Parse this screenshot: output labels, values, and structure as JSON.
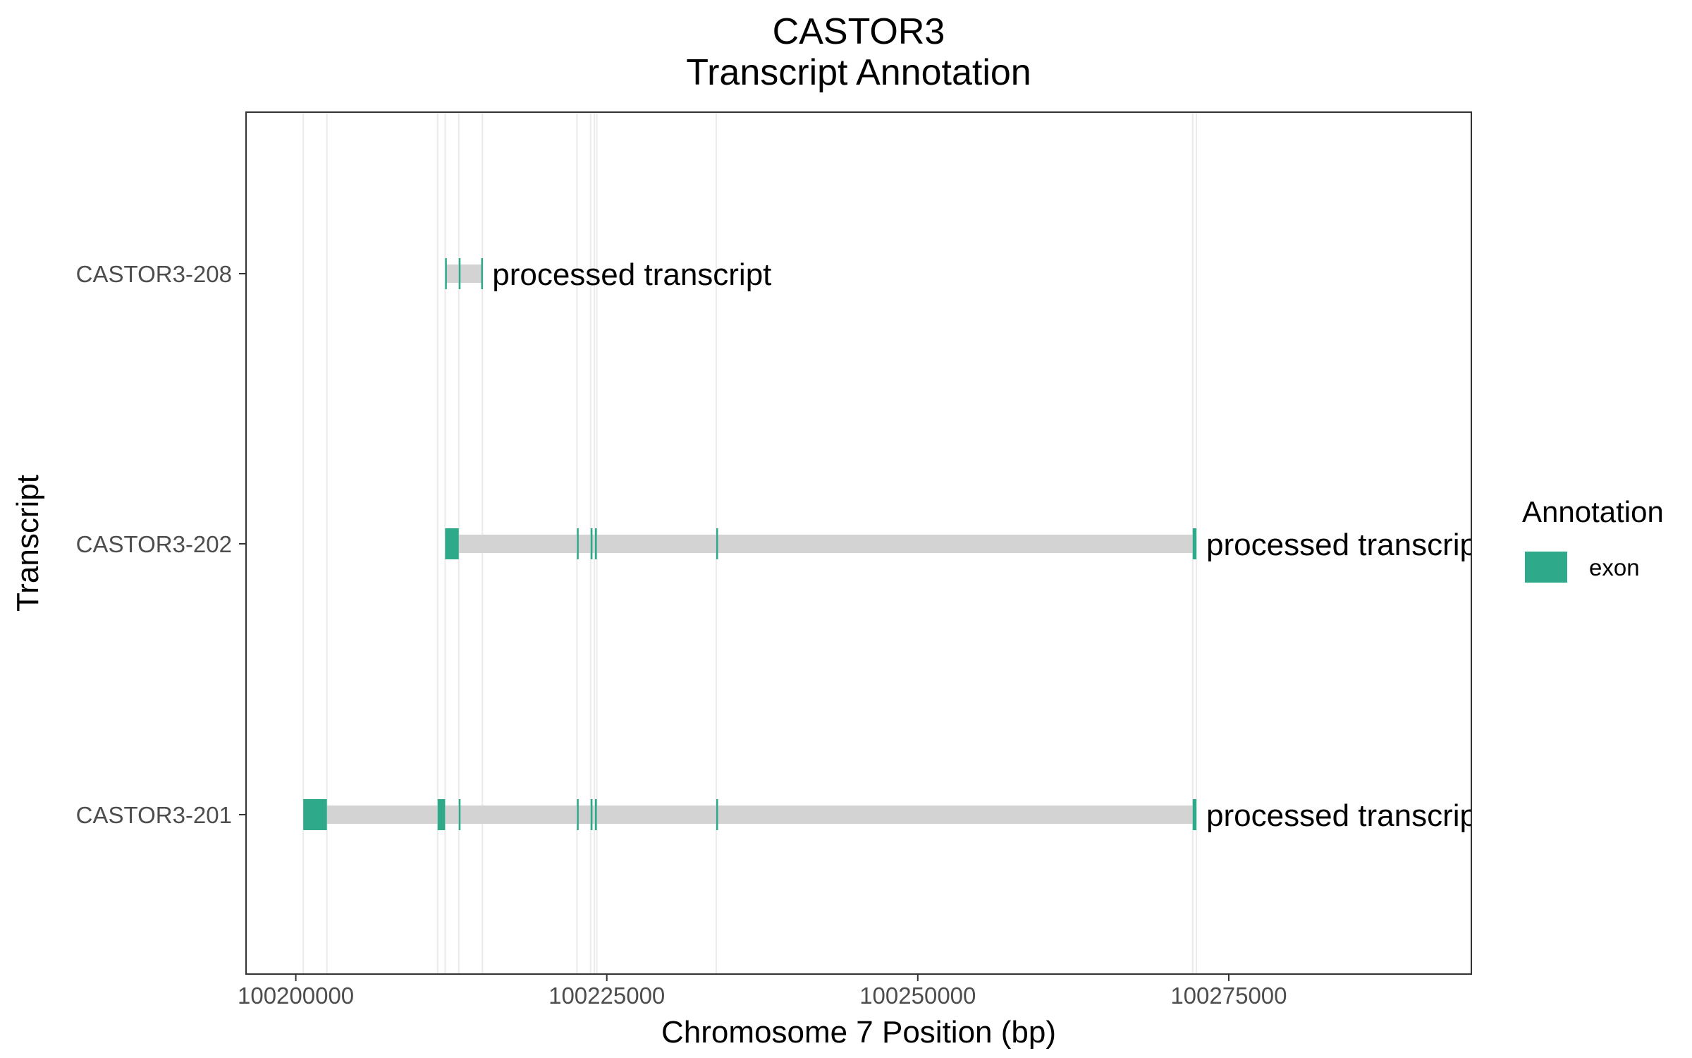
{
  "chart_data": {
    "type": "bar",
    "title": "CASTOR3",
    "subtitle": "Transcript Annotation",
    "xlabel": "Chromosome 7 Position (bp)",
    "ylabel": "Transcript",
    "xlim": [
      100196000,
      100294500
    ],
    "x_ticks": [
      100200000,
      100225000,
      100250000,
      100275000
    ],
    "x_tick_labels": [
      "100200000",
      "100225000",
      "100250000",
      "100275000"
    ],
    "grid": true,
    "legend": {
      "title": "Annotation",
      "placement": "right",
      "entries": [
        {
          "label": "exon",
          "color": "#2eaa8a"
        }
      ]
    },
    "colors": {
      "exon": "#2eaa8a",
      "intron": "#d3d3d3",
      "grid": "#ebebeb"
    },
    "grid_positions": [
      100200600,
      100202500,
      100211400,
      100212000,
      100213100,
      100215000,
      100222600,
      100223700,
      100224000,
      100224200,
      100233800,
      100272100,
      100272400
    ],
    "transcripts": [
      {
        "name": "CASTOR3-208",
        "biotype_label": "processed transcript",
        "start": 100212000,
        "end": 100215000,
        "exons": [
          [
            100212000,
            100212100
          ],
          [
            100213100,
            100213200
          ],
          [
            100214900,
            100215000
          ]
        ]
      },
      {
        "name": "CASTOR3-202",
        "biotype_label": "processed transcript",
        "start": 100212000,
        "end": 100272400,
        "exons": [
          [
            100212000,
            100213100
          ],
          [
            100222600,
            100222700
          ],
          [
            100223700,
            100223850
          ],
          [
            100224050,
            100224200
          ],
          [
            100233800,
            100233900
          ],
          [
            100272100,
            100272400
          ]
        ]
      },
      {
        "name": "CASTOR3-201",
        "biotype_label": "processed transcript",
        "start": 100200600,
        "end": 100272400,
        "exons": [
          [
            100200600,
            100202500
          ],
          [
            100211400,
            100212000
          ],
          [
            100213100,
            100213200
          ],
          [
            100222600,
            100222700
          ],
          [
            100223700,
            100223850
          ],
          [
            100224050,
            100224200
          ],
          [
            100233800,
            100233900
          ],
          [
            100272100,
            100272400
          ]
        ]
      }
    ]
  }
}
